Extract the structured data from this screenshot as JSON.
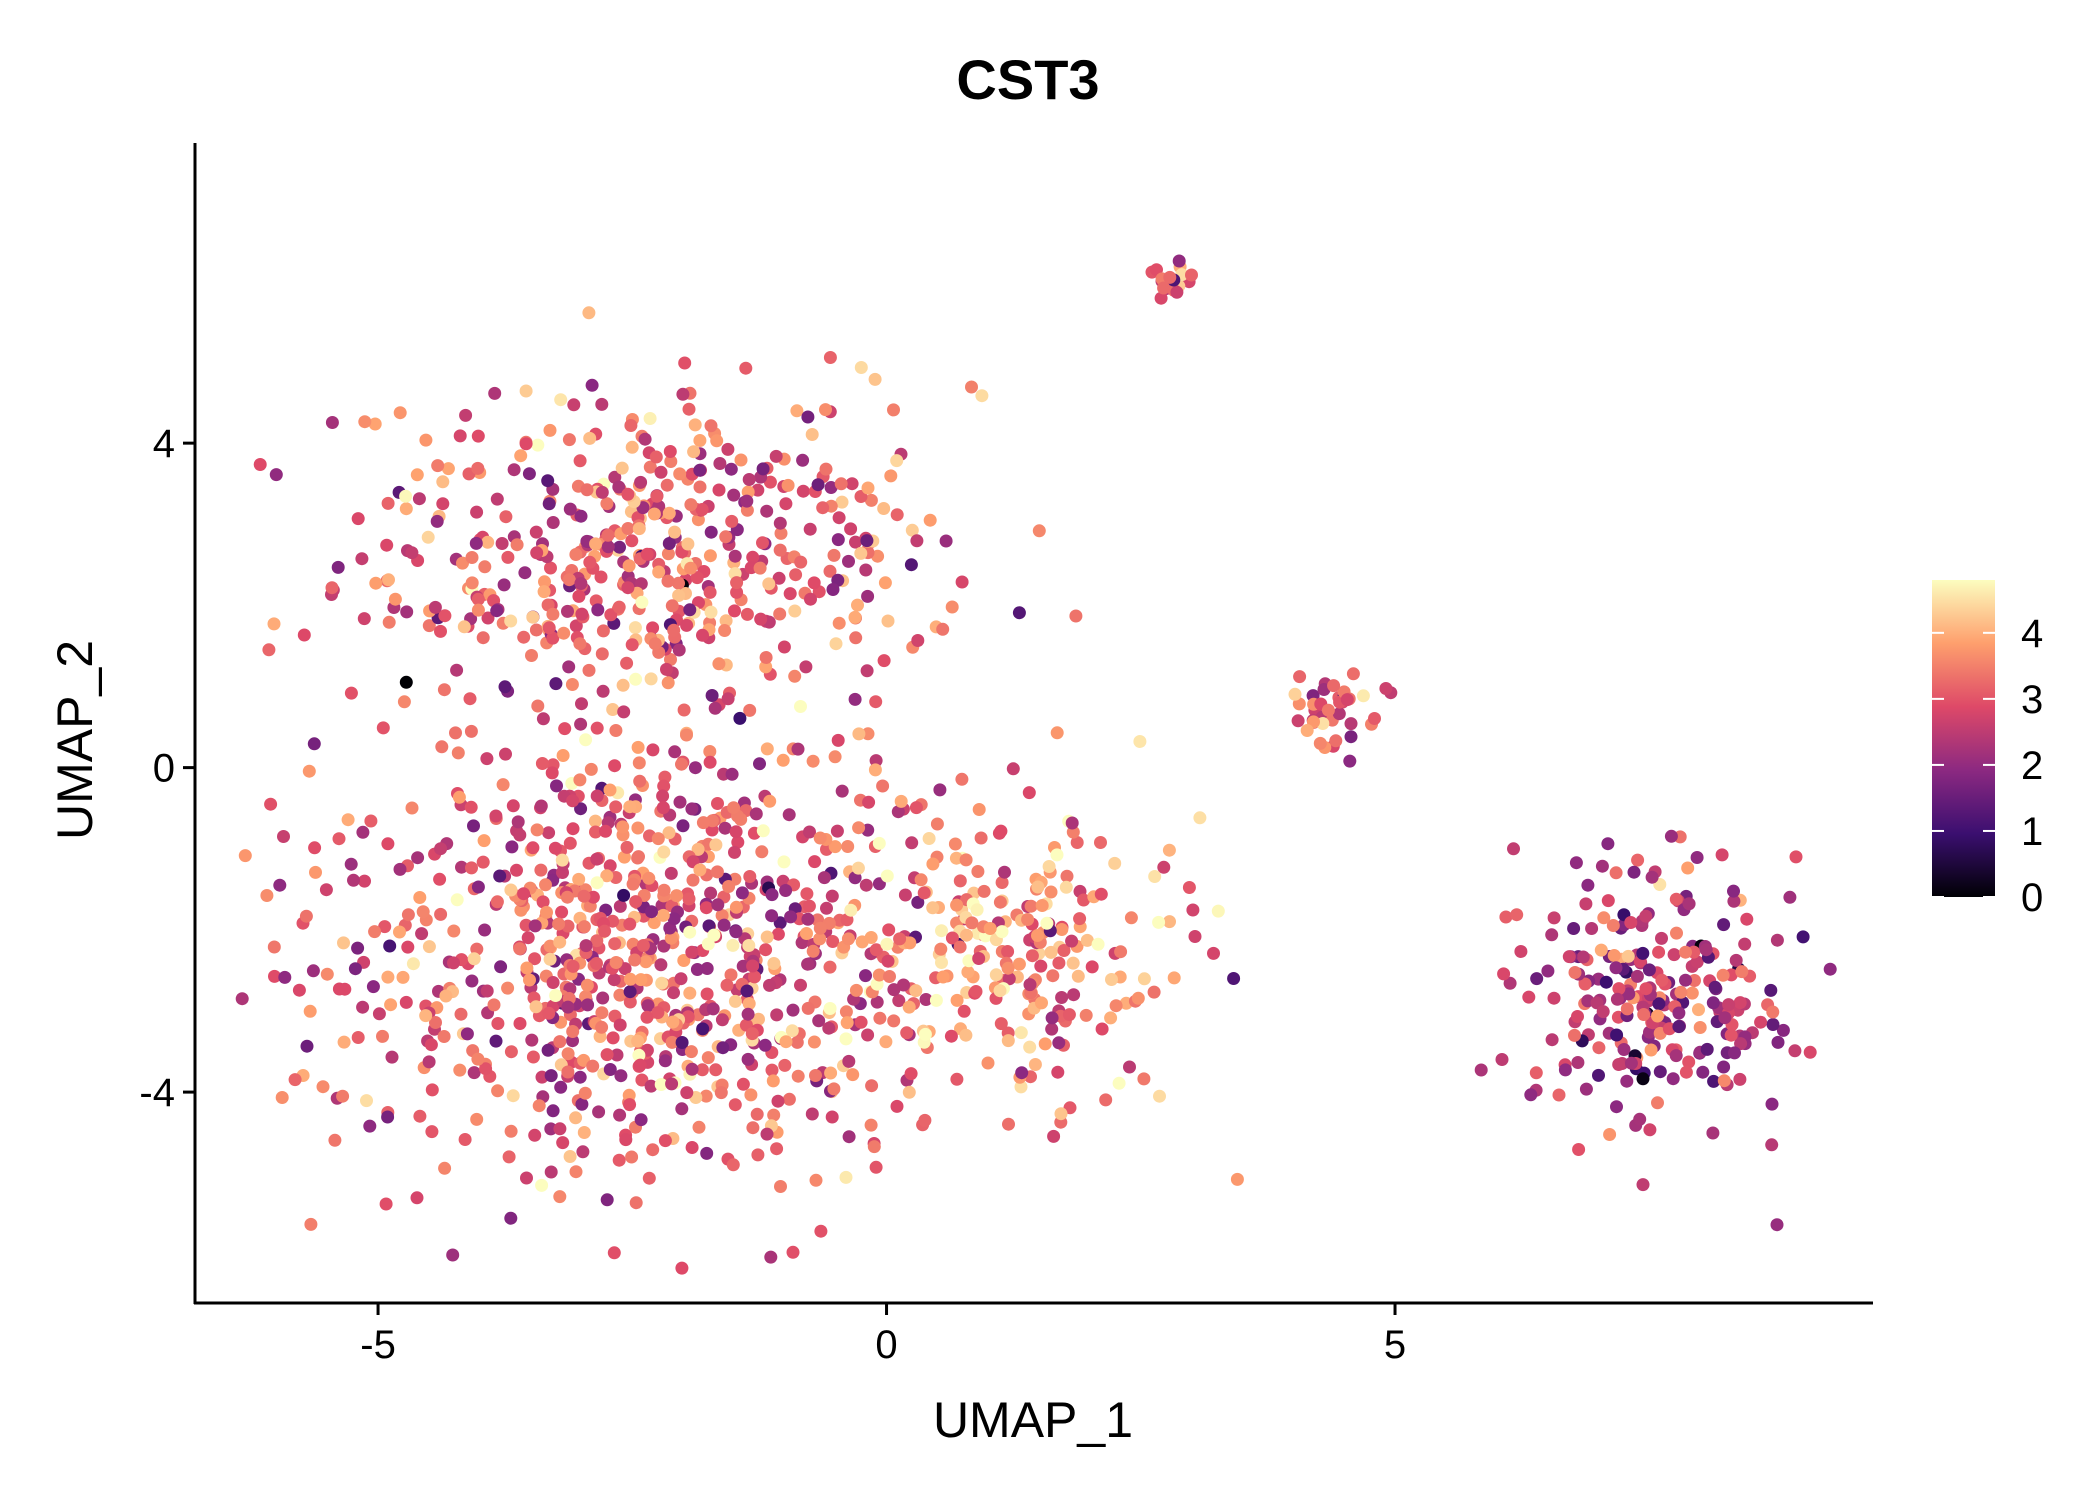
{
  "chart_data": {
    "type": "scatter",
    "title": "CST3",
    "xlabel": "UMAP_1",
    "ylabel": "UMAP_2",
    "xlim": [
      -6.8,
      9.7
    ],
    "ylim": [
      -6.6,
      7.7
    ],
    "x_ticks": [
      -5,
      0,
      5
    ],
    "x_tick_labels": [
      "-5",
      "0",
      "5"
    ],
    "y_ticks": [
      -4,
      0,
      4
    ],
    "y_tick_labels": [
      "-4",
      "0",
      "4"
    ],
    "grid": false,
    "legend": {
      "type": "colorbar",
      "placement": "right",
      "min": 0,
      "max": 4.8,
      "ticks": [
        0,
        1,
        2,
        3,
        4
      ],
      "tick_labels": [
        "0",
        "1",
        "2",
        "3",
        "4"
      ],
      "palette": "magma"
    },
    "colors": {
      "c0": "#000004",
      "c1": "#3b0f70",
      "c2": "#8c2981",
      "c3": "#de4968",
      "c4": "#fe9f6d",
      "c5": "#fcfdbf"
    },
    "clusters": [
      {
        "name": "upper-left",
        "cx": -2.3,
        "cy": 2.6,
        "sx": 1.5,
        "sy": 1.0,
        "n": 520,
        "mean": 3.1
      },
      {
        "name": "lower-left",
        "cx": -2.4,
        "cy": -2.3,
        "sx": 1.6,
        "sy": 1.4,
        "n": 900,
        "mean": 3.1
      },
      {
        "name": "middle",
        "cx": 1.3,
        "cy": -2.3,
        "sx": 0.9,
        "sy": 0.9,
        "n": 240,
        "mean": 3.6
      },
      {
        "name": "top-small",
        "cx": 2.8,
        "cy": 6.0,
        "sx": 0.12,
        "sy": 0.15,
        "n": 18,
        "mean": 3.0
      },
      {
        "name": "mid-right",
        "cx": 4.4,
        "cy": 0.7,
        "sx": 0.25,
        "sy": 0.3,
        "n": 40,
        "mean": 3.0
      },
      {
        "name": "right-arm",
        "cx": 7.6,
        "cy": -2.9,
        "sx": 0.7,
        "sy": 0.8,
        "n": 260,
        "mean": 2.4
      }
    ]
  }
}
